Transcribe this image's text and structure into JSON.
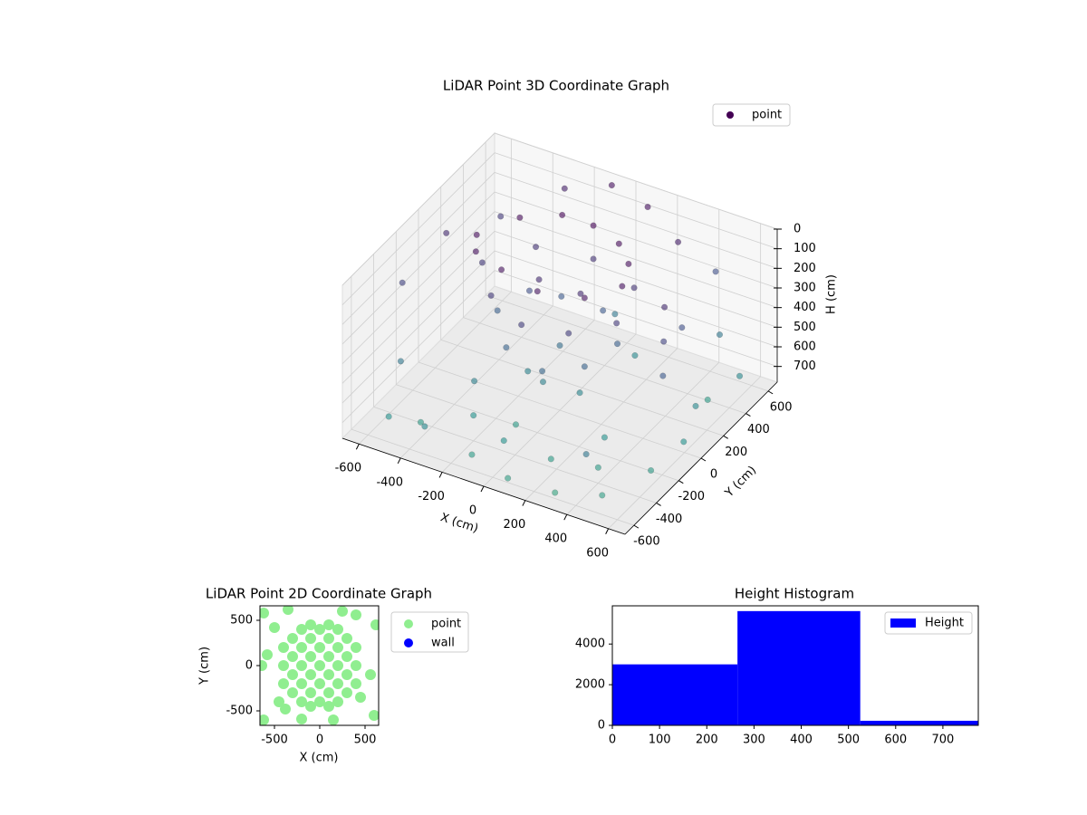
{
  "chart_data": [
    {
      "type": "scatter3d",
      "title": "LiDAR Point 3D Coordinate Graph",
      "xlabel": "X (cm)",
      "ylabel": "Y (cm)",
      "zlabel": "H (cm)",
      "xlim": [
        -680,
        680
      ],
      "ylim": [
        -680,
        680
      ],
      "zlim": [
        0,
        780
      ],
      "zinvert": true,
      "colormap": "viridis",
      "xticks": [
        -600,
        -400,
        -200,
        0,
        200,
        400,
        600
      ],
      "yticks": [
        -600,
        -400,
        -200,
        0,
        200,
        400,
        600
      ],
      "zticks": [
        0,
        100,
        200,
        300,
        400,
        500,
        600,
        700
      ],
      "legend": "upper right",
      "series": [
        {
          "name": "point",
          "color": "#440154",
          "x": [
            -400,
            -300,
            -150,
            0,
            150,
            250,
            300,
            200,
            0,
            -200,
            -350,
            -400,
            -250,
            -50,
            150,
            300,
            250,
            0,
            -250,
            -100,
            100,
            -300,
            -150,
            50,
            200,
            250,
            100,
            -100,
            0,
            -200,
            0,
            150,
            -100,
            450,
            500,
            550,
            480,
            -650,
            -600,
            -550,
            -500,
            -400,
            -300,
            -200,
            -100,
            0,
            100,
            200,
            300,
            400,
            500,
            600,
            650,
            600,
            550,
            650,
            500,
            400,
            300,
            100,
            -100,
            -300,
            -500,
            200,
            350,
            -50,
            50,
            450,
            -250
          ],
          "y": [
            0,
            200,
            300,
            300,
            250,
            150,
            0,
            -150,
            -200,
            -150,
            -100,
            50,
            -150,
            -250,
            -200,
            -50,
            200,
            300,
            250,
            0,
            0,
            0,
            -200,
            -250,
            -150,
            50,
            200,
            200,
            0,
            100,
            -150,
            -100,
            -100,
            100,
            0,
            -100,
            200,
            -200,
            100,
            -400,
            -600,
            -500,
            -650,
            -400,
            -600,
            -500,
            -650,
            -450,
            -600,
            -400,
            -550,
            -300,
            -100,
            100,
            300,
            400,
            500,
            650,
            500,
            600,
            650,
            600,
            400,
            300,
            -250,
            -300,
            400,
            -600,
            -300
          ],
          "z": [
            30,
            20,
            10,
            10,
            20,
            30,
            40,
            50,
            60,
            50,
            40,
            200,
            200,
            220,
            220,
            200,
            180,
            180,
            180,
            150,
            150,
            380,
            400,
            420,
            400,
            380,
            350,
            350,
            450,
            300,
            550,
            580,
            560,
            150,
            250,
            350,
            300,
            250,
            150,
            500,
            650,
            700,
            600,
            650,
            700,
            650,
            720,
            700,
            750,
            700,
            720,
            700,
            650,
            600,
            700,
            600,
            500,
            300,
            100,
            50,
            40,
            100,
            200,
            600,
            650,
            700,
            500,
            500,
            550
          ]
        }
      ]
    },
    {
      "type": "scatter",
      "title": "LiDAR Point 2D Coordinate Graph",
      "xlabel": "X (cm)",
      "ylabel": "Y (cm)",
      "xlim": [
        -660,
        650
      ],
      "ylim": [
        -660,
        660
      ],
      "xticks": [
        -500,
        0,
        500
      ],
      "yticks": [
        -500,
        0,
        500
      ],
      "legend": "outside right",
      "series": [
        {
          "name": "point",
          "color": "#90ee90",
          "x": [
            -400,
            -400,
            -400,
            -300,
            -300,
            -300,
            -300,
            -200,
            -200,
            -200,
            -200,
            -200,
            -100,
            -100,
            -100,
            -100,
            -100,
            -100,
            0,
            0,
            0,
            0,
            0,
            100,
            100,
            100,
            100,
            100,
            100,
            200,
            200,
            200,
            200,
            200,
            300,
            300,
            300,
            300,
            400,
            400,
            400,
            450,
            -450,
            -620,
            -500,
            -580,
            -640,
            -380,
            -200,
            150,
            600,
            620,
            400,
            250,
            -350,
            560,
            -620
          ],
          "y": [
            0,
            200,
            -200,
            300,
            100,
            -100,
            -300,
            400,
            200,
            0,
            -200,
            -400,
            450,
            300,
            100,
            -100,
            -300,
            -450,
            400,
            200,
            0,
            -200,
            -400,
            450,
            300,
            100,
            -100,
            -300,
            -450,
            400,
            200,
            0,
            -200,
            -400,
            300,
            100,
            -100,
            -300,
            200,
            0,
            -200,
            -350,
            -400,
            580,
            420,
            120,
            0,
            -480,
            -590,
            -600,
            -550,
            450,
            560,
            600,
            620,
            -100,
            -600
          ]
        },
        {
          "name": "wall",
          "color": "#0000ff",
          "x": [],
          "y": []
        }
      ]
    },
    {
      "type": "histogram",
      "title": "Height Histogram",
      "bins": [
        0,
        265,
        525,
        775
      ],
      "values": [
        3000,
        5620,
        225
      ],
      "color": "#0000ff",
      "series_name": "Height",
      "xlim": [
        0,
        775
      ],
      "ylim": [
        0,
        5880
      ],
      "xticks": [
        0,
        100,
        200,
        300,
        400,
        500,
        600,
        700
      ],
      "yticks": [
        0,
        2000,
        4000
      ],
      "legend": "upper right"
    }
  ]
}
